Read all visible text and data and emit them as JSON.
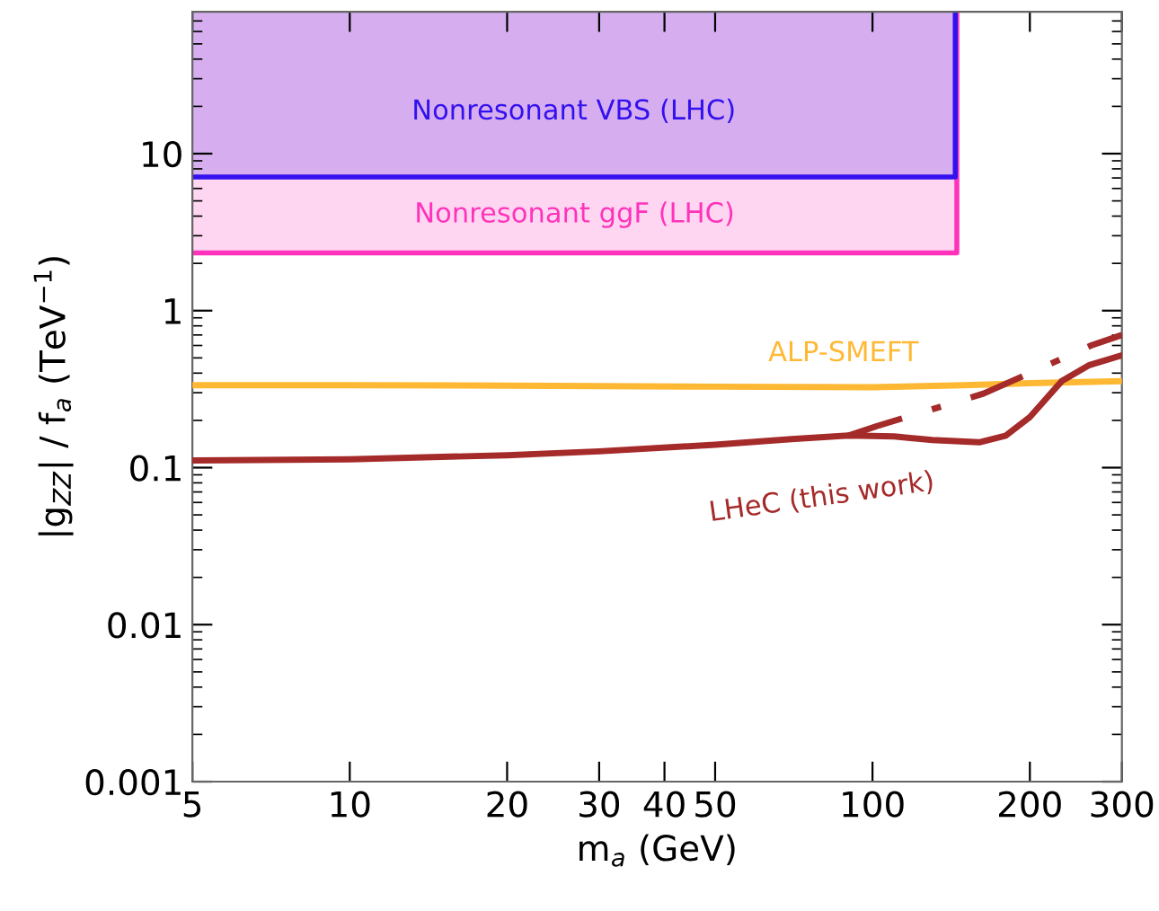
{
  "chart_data": {
    "type": "line",
    "log": "xy",
    "xlabel": "m$_{a}$ (GeV)",
    "ylabel": "|g$_{ZZ}$| / f$_{a}$ (TeV$^{−1}$)",
    "xlim": [
      5,
      300
    ],
    "ylim": [
      0.001,
      80
    ],
    "xticks": [
      5,
      10,
      20,
      30,
      40,
      50,
      100,
      200,
      300
    ],
    "yticks": [
      0.001,
      0.01,
      0.1,
      1,
      10
    ],
    "grid": false,
    "legend": false,
    "series": [
      {
        "name": "Nonresonant ggF (LHC)",
        "color": "#ff33bb",
        "x": [
          5,
          145,
          145
        ],
        "values": [
          2.33,
          2.33,
          80
        ],
        "lower": [
          2.33,
          2.33,
          2.33
        ],
        "upper": [
          80,
          80,
          80
        ]
      },
      {
        "name": "Nonresonant VBS (LHC)",
        "color": "#3311ee",
        "x": [
          5,
          144,
          144
        ],
        "values": [
          7.1,
          7.1,
          80
        ],
        "lower": [
          7.1,
          7.1,
          7.1
        ],
        "upper": [
          80,
          80,
          80
        ]
      },
      {
        "name": "ALP-SMEFT",
        "color": "#ffb833",
        "line_style": "solid",
        "x": [
          5,
          10,
          20,
          50,
          100,
          150,
          200,
          300
        ],
        "values": [
          0.335,
          0.335,
          0.333,
          0.328,
          0.325,
          0.335,
          0.345,
          0.355
        ]
      },
      {
        "name": "LHeC (this work)",
        "color": "#a52a2a",
        "line_style": "solid",
        "x": [
          5,
          10,
          20,
          30,
          50,
          70,
          90,
          110,
          130,
          160,
          180,
          200,
          230,
          260,
          300
        ],
        "values": [
          0.111,
          0.113,
          0.12,
          0.127,
          0.14,
          0.152,
          0.16,
          0.158,
          0.15,
          0.145,
          0.16,
          0.21,
          0.355,
          0.45,
          0.52
        ]
      },
      {
        "color": "#a52a2a",
        "line_style": "dashed",
        "x": [
          90,
          102,
          130,
          163,
          200,
          262,
          300
        ],
        "values": [
          0.16,
          0.184,
          0.235,
          0.296,
          0.4,
          0.6,
          0.7
        ]
      }
    ]
  }
}
